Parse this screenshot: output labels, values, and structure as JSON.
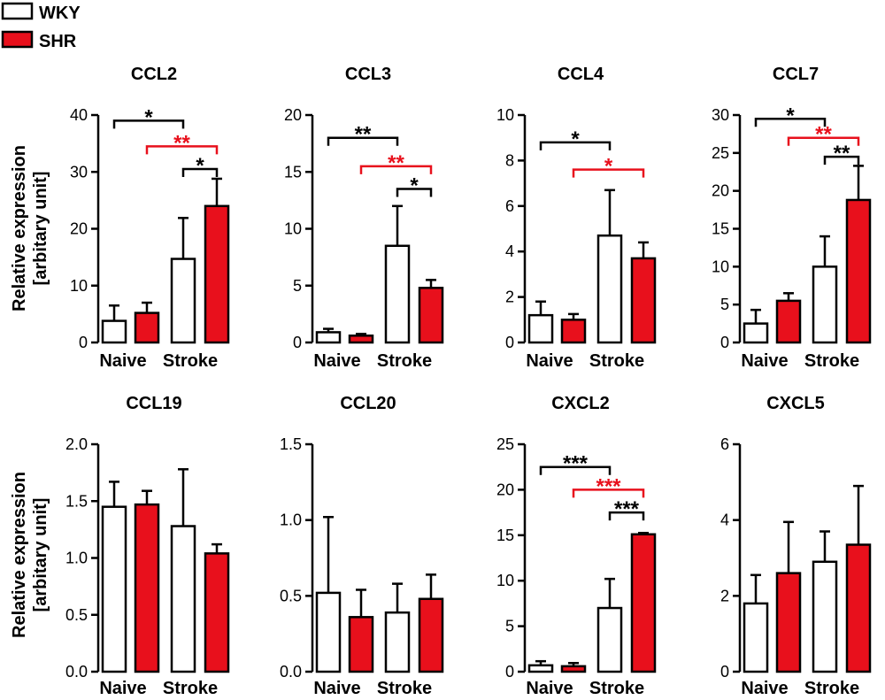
{
  "legend": [
    {
      "label": "WKY",
      "fill": "#ffffff"
    },
    {
      "label": "SHR",
      "fill": "#e8101c"
    }
  ],
  "colors": {
    "wky": "#ffffff",
    "shr": "#e8101c",
    "axis": "#000000",
    "sig_red": "#e8101c",
    "sig_black": "#000000"
  },
  "y_label": [
    "Relative expression",
    "[arbitary unit]"
  ],
  "chart_data": [
    {
      "type": "bar",
      "title": "CCL2",
      "groups": [
        "Naive",
        "Stroke"
      ],
      "series": [
        "WKY",
        "SHR",
        "WKY",
        "SHR"
      ],
      "values": [
        3.8,
        5.2,
        14.7,
        24.0
      ],
      "errors": [
        2.7,
        1.8,
        7.2,
        4.8
      ],
      "ylim": [
        0,
        40
      ],
      "yticks": [
        0,
        10,
        20,
        30,
        40
      ],
      "ytick_labels": [
        "0",
        "10",
        "20",
        "30",
        "40"
      ],
      "significance": [
        {
          "from": 0,
          "to": 2,
          "at": 39.0,
          "label": "*",
          "color": "black"
        },
        {
          "from": 1,
          "to": 3,
          "at": 34.5,
          "label": "**",
          "color": "red"
        },
        {
          "from": 2,
          "to": 3,
          "at": 30.5,
          "label": "*",
          "color": "black"
        }
      ]
    },
    {
      "type": "bar",
      "title": "CCL3",
      "groups": [
        "Naive",
        "Stroke"
      ],
      "series": [
        "WKY",
        "SHR",
        "WKY",
        "SHR"
      ],
      "values": [
        0.9,
        0.6,
        8.5,
        4.8
      ],
      "errors": [
        0.3,
        0.15,
        3.5,
        0.7
      ],
      "ylim": [
        0,
        20
      ],
      "yticks": [
        0,
        5,
        10,
        15,
        20
      ],
      "ytick_labels": [
        "0",
        "5",
        "10",
        "15",
        "20"
      ],
      "significance": [
        {
          "from": 0,
          "to": 2,
          "at": 18.0,
          "label": "**",
          "color": "black"
        },
        {
          "from": 1,
          "to": 3,
          "at": 15.5,
          "label": "**",
          "color": "red"
        },
        {
          "from": 2,
          "to": 3,
          "at": 13.5,
          "label": "*",
          "color": "black"
        }
      ]
    },
    {
      "type": "bar",
      "title": "CCL4",
      "groups": [
        "Naive",
        "Stroke"
      ],
      "series": [
        "WKY",
        "SHR",
        "WKY",
        "SHR"
      ],
      "values": [
        1.2,
        1.0,
        4.7,
        3.7
      ],
      "errors": [
        0.6,
        0.25,
        2.0,
        0.7
      ],
      "ylim": [
        0,
        10
      ],
      "yticks": [
        0,
        2,
        4,
        6,
        8,
        10
      ],
      "ytick_labels": [
        "0",
        "2",
        "4",
        "6",
        "8",
        "10"
      ],
      "significance": [
        {
          "from": 0,
          "to": 2,
          "at": 8.8,
          "label": "*",
          "color": "black"
        },
        {
          "from": 1,
          "to": 3,
          "at": 7.6,
          "label": "*",
          "color": "red"
        }
      ]
    },
    {
      "type": "bar",
      "title": "CCL7",
      "groups": [
        "Naive",
        "Stroke"
      ],
      "series": [
        "WKY",
        "SHR",
        "WKY",
        "SHR"
      ],
      "values": [
        2.5,
        5.5,
        10.0,
        18.8
      ],
      "errors": [
        1.8,
        1.0,
        4.0,
        4.5
      ],
      "ylim": [
        0,
        30
      ],
      "yticks": [
        0,
        5,
        10,
        15,
        20,
        25,
        30
      ],
      "ytick_labels": [
        "0",
        "5",
        "10",
        "15",
        "20",
        "25",
        "30"
      ],
      "significance": [
        {
          "from": 0,
          "to": 2,
          "at": 29.5,
          "label": "*",
          "color": "black"
        },
        {
          "from": 1,
          "to": 3,
          "at": 27.0,
          "label": "**",
          "color": "red"
        },
        {
          "from": 2,
          "to": 3,
          "at": 24.5,
          "label": "**",
          "color": "black"
        }
      ]
    },
    {
      "type": "bar",
      "title": "CCL19",
      "groups": [
        "Naive",
        "Stroke"
      ],
      "series": [
        "WKY",
        "SHR",
        "WKY",
        "SHR"
      ],
      "values": [
        1.45,
        1.47,
        1.28,
        1.04
      ],
      "errors": [
        0.22,
        0.12,
        0.5,
        0.08
      ],
      "ylim": [
        0,
        2.0
      ],
      "yticks": [
        0,
        0.5,
        1.0,
        1.5,
        2.0
      ],
      "ytick_labels": [
        "0.0",
        "0.5",
        "1.0",
        "1.5",
        "2.0"
      ],
      "significance": []
    },
    {
      "type": "bar",
      "title": "CCL20",
      "groups": [
        "Naive",
        "Stroke"
      ],
      "series": [
        "WKY",
        "SHR",
        "WKY",
        "SHR"
      ],
      "values": [
        0.52,
        0.36,
        0.39,
        0.48
      ],
      "errors": [
        0.5,
        0.18,
        0.19,
        0.16
      ],
      "ylim": [
        0,
        1.5
      ],
      "yticks": [
        0,
        0.5,
        1.0,
        1.5
      ],
      "ytick_labels": [
        "0.0",
        "0.5",
        "1.0",
        "1.5"
      ],
      "significance": []
    },
    {
      "type": "bar",
      "title": "CXCL2",
      "groups": [
        "Naive",
        "Stroke"
      ],
      "series": [
        "WKY",
        "SHR",
        "WKY",
        "SHR"
      ],
      "values": [
        0.7,
        0.6,
        7.0,
        15.1
      ],
      "errors": [
        0.45,
        0.35,
        3.2,
        0.15
      ],
      "ylim": [
        0,
        25
      ],
      "yticks": [
        0,
        5,
        10,
        15,
        20,
        25
      ],
      "ytick_labels": [
        "0",
        "5",
        "10",
        "15",
        "20",
        "25"
      ],
      "significance": [
        {
          "from": 0,
          "to": 2,
          "at": 22.5,
          "label": "***",
          "color": "black"
        },
        {
          "from": 1,
          "to": 3,
          "at": 20.0,
          "label": "***",
          "color": "red"
        },
        {
          "from": 2,
          "to": 3,
          "at": 17.5,
          "label": "***",
          "color": "black"
        }
      ]
    },
    {
      "type": "bar",
      "title": "CXCL5",
      "groups": [
        "Naive",
        "Stroke"
      ],
      "series": [
        "WKY",
        "SHR",
        "WKY",
        "SHR"
      ],
      "values": [
        1.8,
        2.6,
        2.9,
        3.35
      ],
      "errors": [
        0.75,
        1.35,
        0.8,
        1.55
      ],
      "ylim": [
        0,
        6
      ],
      "yticks": [
        0,
        2,
        4,
        6
      ],
      "ytick_labels": [
        "0",
        "2",
        "4",
        "6"
      ],
      "significance": []
    }
  ]
}
